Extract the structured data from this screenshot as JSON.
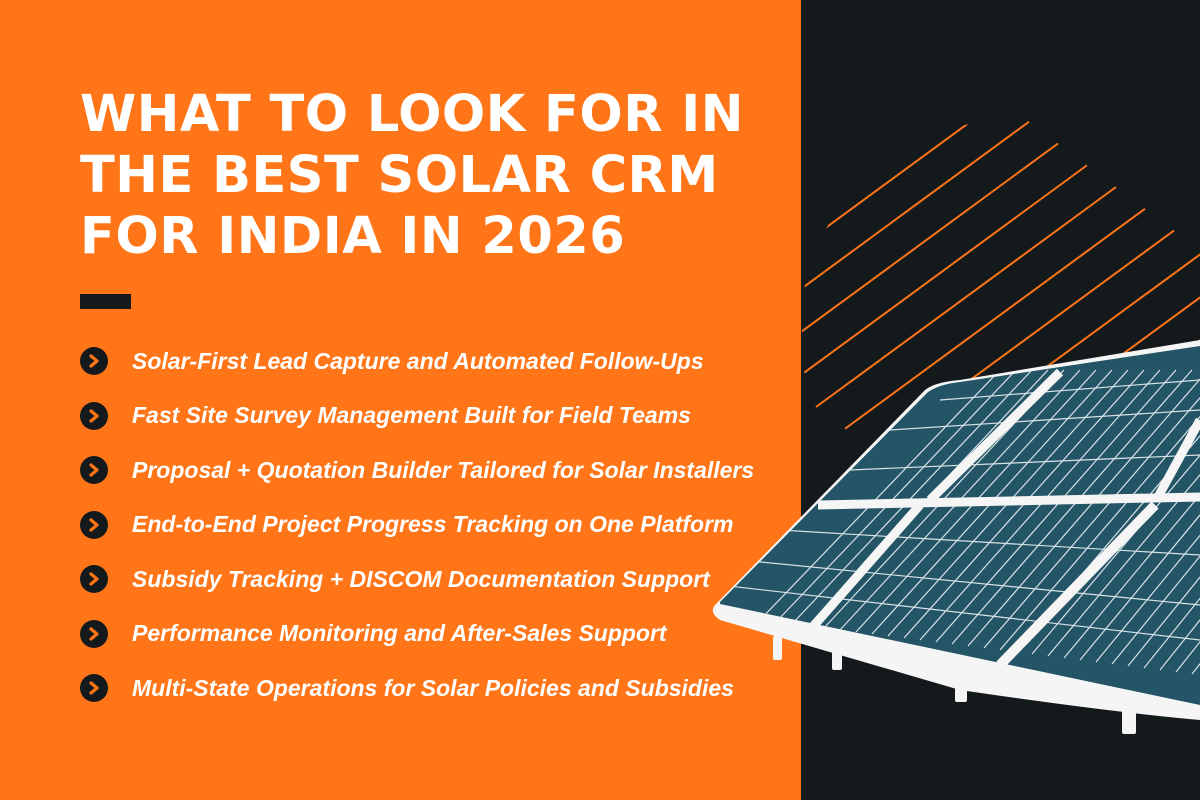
{
  "headline": "What to look for in\nthe best Solar CRM\nfor India in 2026",
  "features": [
    {
      "label": "Solar-First Lead Capture and Automated Follow-Ups",
      "icon": "chevron-right-circle-icon"
    },
    {
      "label": "Fast Site Survey Management Built for Field Teams",
      "icon": "chevron-right-circle-icon"
    },
    {
      "label": "Proposal + Quotation Builder Tailored for Solar Installers",
      "icon": "chevron-right-circle-icon"
    },
    {
      "label": "End-to-End Project Progress Tracking on One Platform",
      "icon": "chevron-right-circle-icon"
    },
    {
      "label": "Subsidy Tracking + DISCOM Documentation Support",
      "icon": "chevron-right-circle-icon"
    },
    {
      "label": "Performance Monitoring and After-Sales Support",
      "icon": "chevron-right-circle-icon"
    },
    {
      "label": "Multi-State Operations for Solar Policies and Subsidies",
      "icon": "chevron-right-circle-icon"
    }
  ],
  "colors": {
    "orange": "#ff7518",
    "dark": "#14191c",
    "panel": "#235566",
    "frame": "#f5f5f5"
  }
}
